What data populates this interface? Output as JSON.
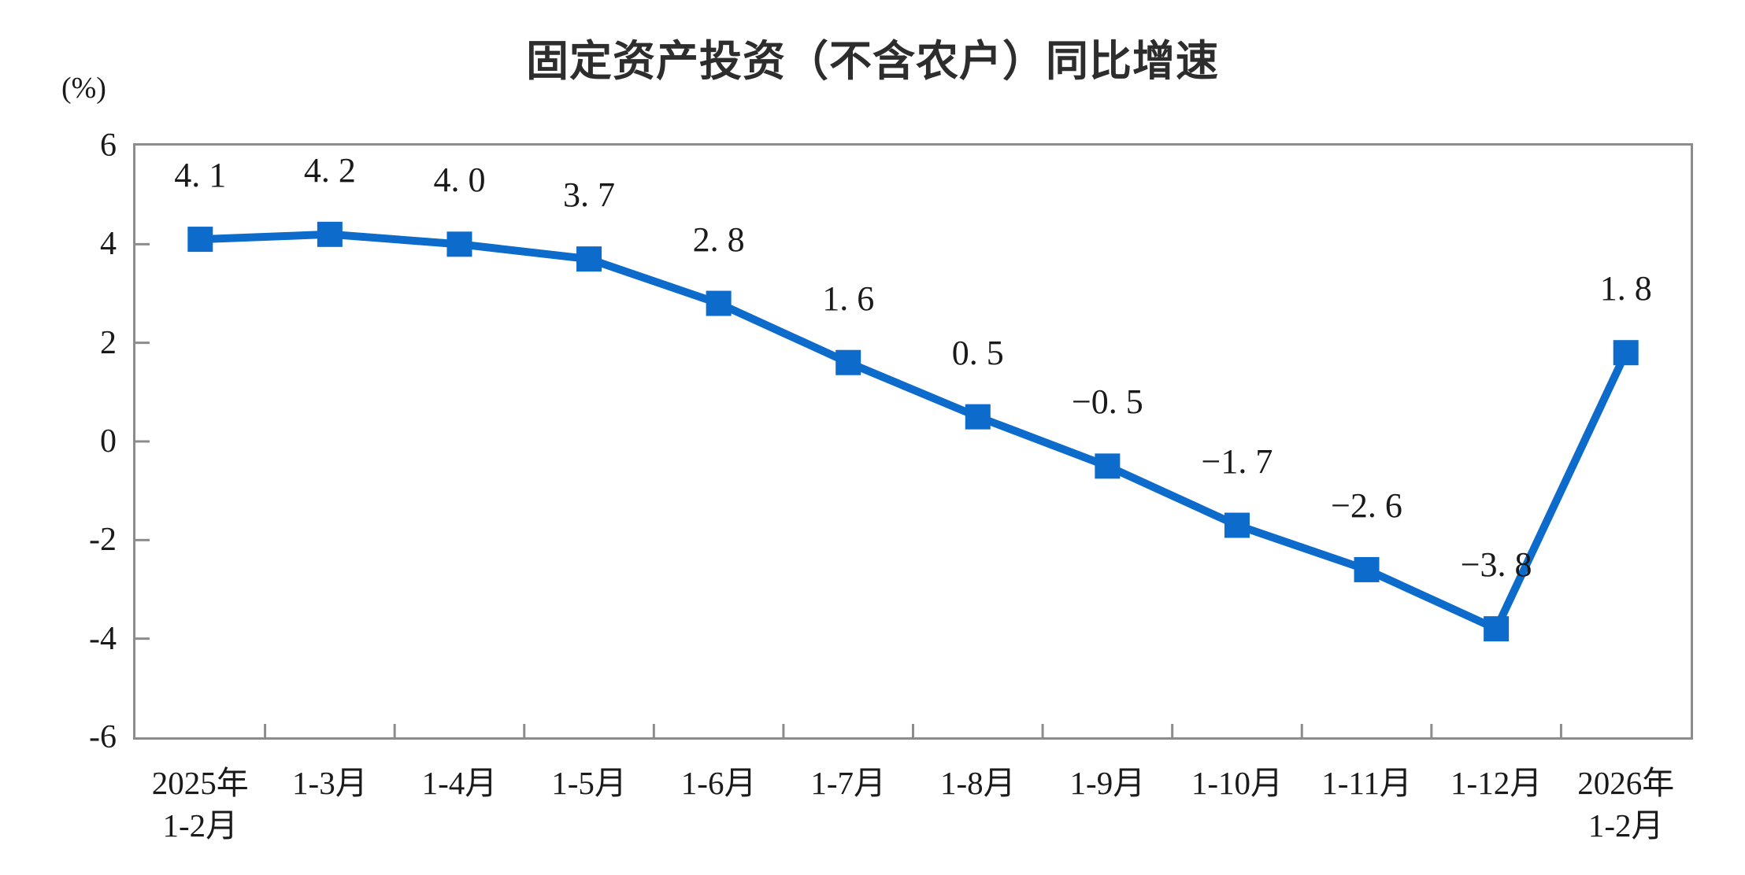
{
  "chart_data": {
    "type": "line",
    "title": "固定资产投资（不含农户）同比增速",
    "unit_label": "(%)",
    "categories": [
      "2025年\n1-2月",
      "1-3月",
      "1-4月",
      "1-5月",
      "1-6月",
      "1-7月",
      "1-8月",
      "1-9月",
      "1-10月",
      "1-11月",
      "1-12月",
      "2026年\n1-2月"
    ],
    "values": [
      4.1,
      4.2,
      4.0,
      3.7,
      2.8,
      1.6,
      0.5,
      -0.5,
      -1.7,
      -2.6,
      -3.8,
      1.8
    ],
    "point_labels": [
      "4. 1",
      "4. 2",
      "4. 0",
      "3. 7",
      "2. 8",
      "1. 6",
      "0. 5",
      "−0. 5",
      "−1. 7",
      "−2. 6",
      "−3. 8",
      "1. 8"
    ],
    "xlabel": "",
    "ylabel": "(%)",
    "ylim": [
      -6,
      6
    ],
    "ytick_values": [
      6,
      4,
      2,
      0,
      -2,
      -4,
      -6
    ],
    "ytick_labels": [
      "6",
      "4",
      "2",
      "0",
      "-2",
      "-4",
      "-6"
    ],
    "grid": false,
    "legend": "none",
    "marker": "square",
    "colors": {
      "line": "#0d6bcb",
      "axis": "#8c8c8c",
      "text": "#1a1a1a"
    }
  }
}
